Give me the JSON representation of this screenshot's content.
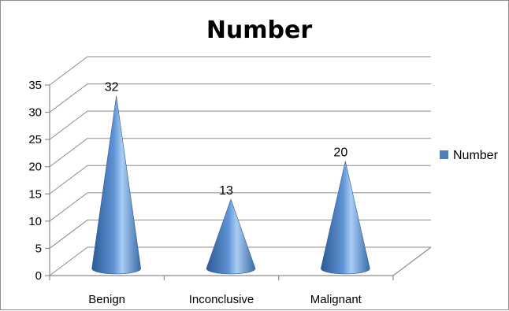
{
  "chart_data": {
    "type": "bar",
    "subtype": "3d-cone",
    "title": "Number",
    "categories": [
      "Benign",
      "Inconclusive",
      "Malignant"
    ],
    "series": [
      {
        "name": "Number",
        "values": [
          32,
          13,
          20
        ],
        "color": "#4f81bd"
      }
    ],
    "data_labels": [
      "32",
      "13",
      "20"
    ],
    "ylim": [
      0,
      35
    ],
    "yticks": [
      0,
      5,
      10,
      15,
      20,
      25,
      30,
      35
    ],
    "xlabel": "",
    "ylabel": "",
    "grid": true,
    "legend": {
      "position": "right",
      "entries": [
        "Number"
      ]
    }
  }
}
